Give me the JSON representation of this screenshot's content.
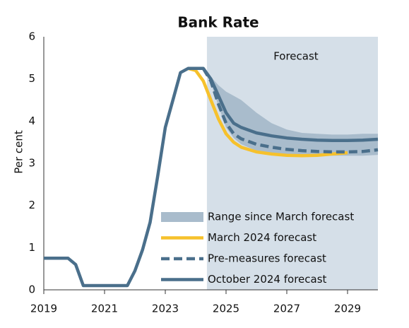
{
  "chart_data": {
    "type": "line",
    "title": "Bank Rate",
    "ylabel": "Per cent",
    "forecast_start": 2024.37,
    "forecast_label": "Forecast",
    "forecast_color": "#d5dfe8",
    "xlim": [
      2019,
      2030
    ],
    "xticks": [
      2019,
      2021,
      2023,
      2025,
      2027,
      2029
    ],
    "ylim": [
      0,
      6
    ],
    "yticks": [
      0,
      1,
      2,
      3,
      4,
      5,
      6
    ],
    "legend": "lower-right",
    "x": [
      2019,
      2019.5,
      2019.8,
      2020.05,
      2020.3,
      2021.0,
      2021.75,
      2022.0,
      2022.25,
      2022.5,
      2022.75,
      2023.0,
      2023.25,
      2023.5,
      2023.75,
      2024.0,
      2024.25,
      2024.5,
      2024.75,
      2025.0,
      2025.25,
      2025.5,
      2026.0,
      2026.5,
      2027.0,
      2027.5,
      2028.0,
      2028.5,
      2029.0,
      2029.5,
      2030.0
    ],
    "series": [
      {
        "name": "Range since March forecast",
        "color": "#a9bccc",
        "band": true,
        "lower": [
          null,
          null,
          null,
          null,
          null,
          null,
          null,
          null,
          null,
          null,
          null,
          null,
          null,
          null,
          null,
          null,
          5.25,
          4.9,
          4.35,
          3.85,
          3.6,
          3.45,
          3.3,
          3.22,
          3.2,
          3.18,
          3.18,
          3.18,
          3.18,
          3.18,
          3.2
        ],
        "upper": [
          null,
          null,
          null,
          null,
          null,
          null,
          null,
          null,
          null,
          null,
          null,
          null,
          null,
          null,
          null,
          null,
          5.25,
          5.05,
          4.85,
          4.7,
          4.6,
          4.5,
          4.2,
          3.95,
          3.8,
          3.72,
          3.7,
          3.68,
          3.68,
          3.7,
          3.7
        ]
      },
      {
        "name": "March 2024 forecast",
        "color": "#f6c12c",
        "values": [
          null,
          null,
          null,
          null,
          null,
          null,
          null,
          null,
          null,
          null,
          null,
          null,
          null,
          null,
          5.25,
          5.2,
          4.95,
          4.5,
          4.05,
          3.7,
          3.5,
          3.38,
          3.27,
          3.22,
          3.19,
          3.18,
          3.19,
          3.22,
          3.25,
          null,
          null
        ]
      },
      {
        "name": "Pre-measures forecast",
        "color": "#4a6f8b",
        "dash": true,
        "values": [
          null,
          null,
          null,
          null,
          null,
          null,
          null,
          null,
          null,
          null,
          null,
          null,
          null,
          null,
          null,
          null,
          5.25,
          4.95,
          4.4,
          3.95,
          3.7,
          3.58,
          3.45,
          3.38,
          3.33,
          3.3,
          3.28,
          3.27,
          3.27,
          3.28,
          3.32
        ]
      },
      {
        "name": "October 2024 forecast",
        "color": "#4a6f8b",
        "values": [
          0.75,
          0.75,
          0.75,
          0.6,
          0.1,
          0.1,
          0.1,
          0.45,
          0.95,
          1.6,
          2.7,
          3.85,
          4.5,
          5.15,
          5.25,
          5.25,
          5.25,
          5.0,
          4.6,
          4.2,
          3.95,
          3.85,
          3.72,
          3.65,
          3.6,
          3.57,
          3.55,
          3.54,
          3.54,
          3.55,
          3.57
        ]
      }
    ]
  }
}
